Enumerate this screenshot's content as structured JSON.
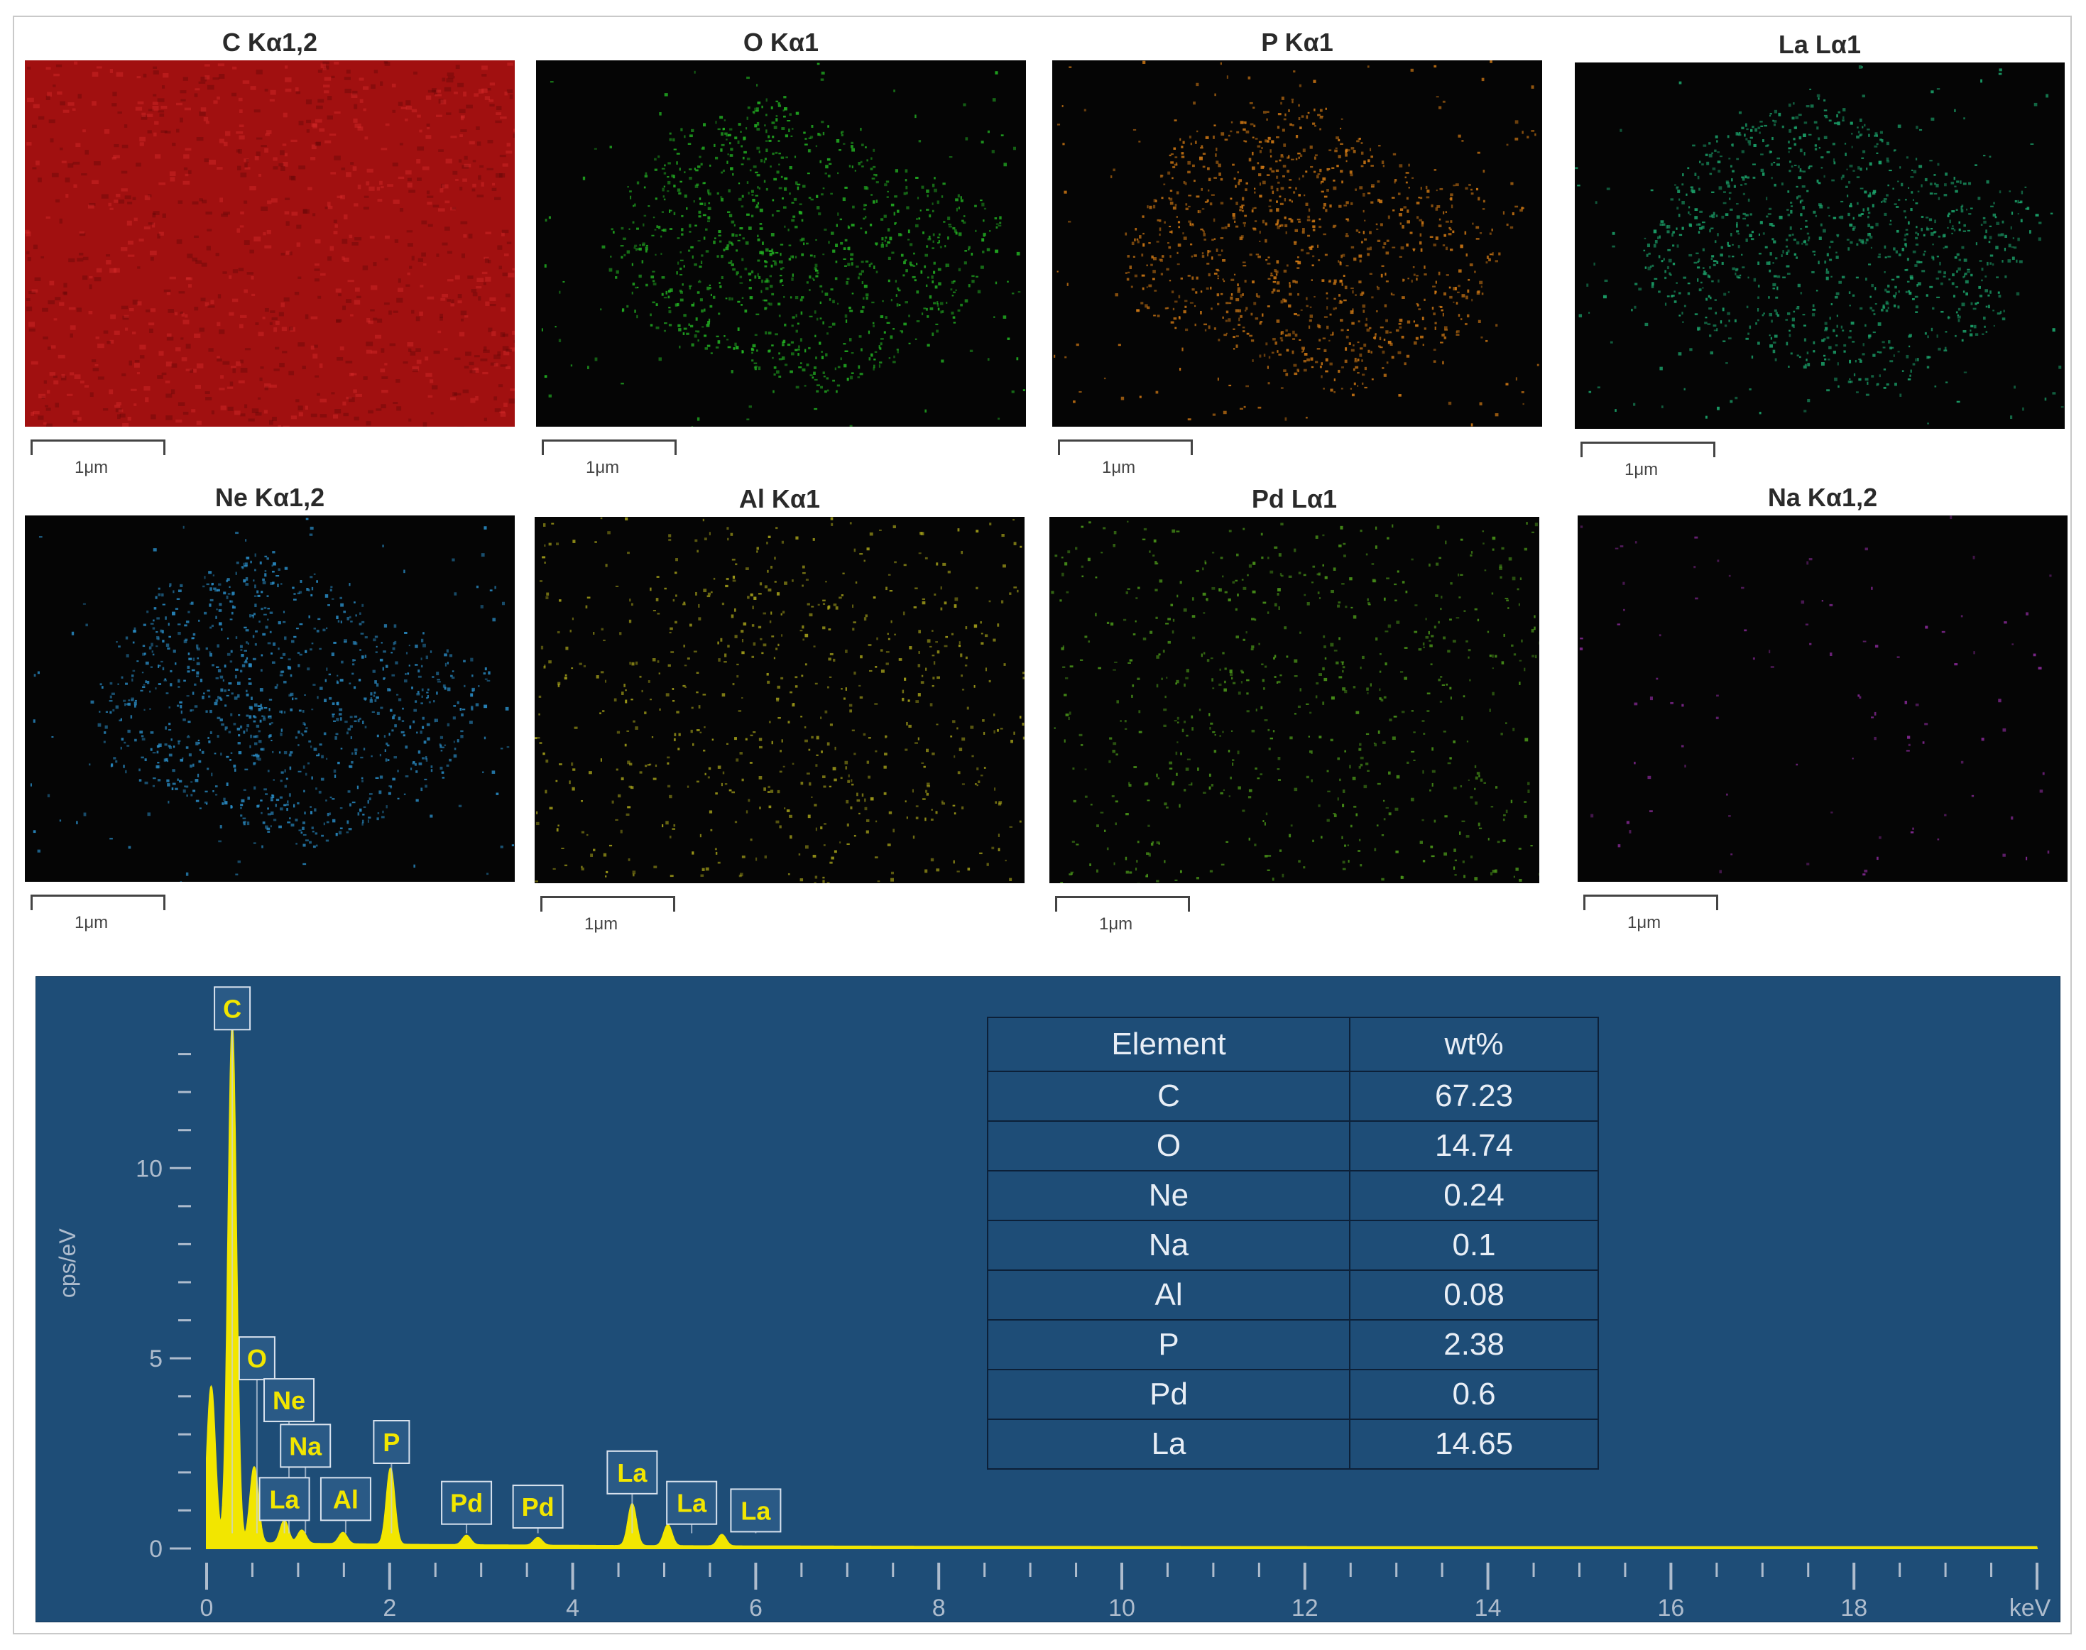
{
  "maps": [
    {
      "title": "C Kα1,2",
      "color": "#c41414",
      "pattern": "full",
      "scale": "1μm"
    },
    {
      "title": "O Kα1",
      "color": "#23b423",
      "pattern": "blob",
      "scale": "1μm"
    },
    {
      "title": "P Kα1",
      "color": "#d27a14",
      "pattern": "blob",
      "scale": "1μm"
    },
    {
      "title": "La Lα1",
      "color": "#1ca86e",
      "pattern": "blob",
      "scale": "1μm"
    },
    {
      "title": "Ne Kα1,2",
      "color": "#2a8ec8",
      "pattern": "blob",
      "scale": "1μm"
    },
    {
      "title": "Al Kα1",
      "color": "#a8a41a",
      "pattern": "sparse",
      "scale": "1μm"
    },
    {
      "title": "Pd Lα1",
      "color": "#4c9a1a",
      "pattern": "sparse",
      "scale": "1μm"
    },
    {
      "title": "Na Kα1,2",
      "color": "#8a2a9a",
      "pattern": "faint",
      "scale": "1μm"
    }
  ],
  "chart_data": {
    "type": "line",
    "xlabel": "keV",
    "ylabel": "cps/eV",
    "xlim": [
      0,
      20
    ],
    "ylim": [
      0,
      14
    ],
    "x_ticks": [
      0,
      2,
      4,
      6,
      8,
      10,
      12,
      14,
      16,
      18
    ],
    "y_ticks": [
      0,
      5,
      10
    ],
    "fill_color": "#f2e600",
    "background": "#1e4d77",
    "peaks": [
      {
        "x": 0.05,
        "y": 4.1
      },
      {
        "x": 0.28,
        "y": 13.6
      },
      {
        "x": 0.52,
        "y": 2.0
      },
      {
        "x": 0.85,
        "y": 0.6
      },
      {
        "x": 1.04,
        "y": 0.35
      },
      {
        "x": 1.49,
        "y": 0.3
      },
      {
        "x": 2.01,
        "y": 2.0
      },
      {
        "x": 2.84,
        "y": 0.25
      },
      {
        "x": 3.62,
        "y": 0.2
      },
      {
        "x": 4.65,
        "y": 1.1
      },
      {
        "x": 5.04,
        "y": 0.55
      },
      {
        "x": 5.63,
        "y": 0.3
      }
    ],
    "peak_labels": [
      {
        "text": "C",
        "x": 0.28,
        "y": 14.2
      },
      {
        "text": "O",
        "x": 0.55,
        "y": 5.0
      },
      {
        "text": "Ne",
        "x": 0.9,
        "y": 3.9
      },
      {
        "text": "Na",
        "x": 1.08,
        "y": 2.7
      },
      {
        "text": "P",
        "x": 2.02,
        "y": 2.8
      },
      {
        "text": "La",
        "x": 0.85,
        "y": 1.3
      },
      {
        "text": "Al",
        "x": 1.52,
        "y": 1.3
      },
      {
        "text": "Pd",
        "x": 2.84,
        "y": 1.2
      },
      {
        "text": "Pd",
        "x": 3.62,
        "y": 1.1
      },
      {
        "text": "La",
        "x": 4.65,
        "y": 2.0
      },
      {
        "text": "La",
        "x": 5.3,
        "y": 1.2
      },
      {
        "text": "La",
        "x": 6.0,
        "y": 1.0
      }
    ]
  },
  "table": {
    "headers": [
      "Element",
      "wt%"
    ],
    "rows": [
      [
        "C",
        "67.23"
      ],
      [
        "O",
        "14.74"
      ],
      [
        "Ne",
        "0.24"
      ],
      [
        "Na",
        "0.1"
      ],
      [
        "Al",
        "0.08"
      ],
      [
        "P",
        "2.38"
      ],
      [
        "Pd",
        "0.6"
      ],
      [
        "La",
        "14.65"
      ]
    ]
  }
}
